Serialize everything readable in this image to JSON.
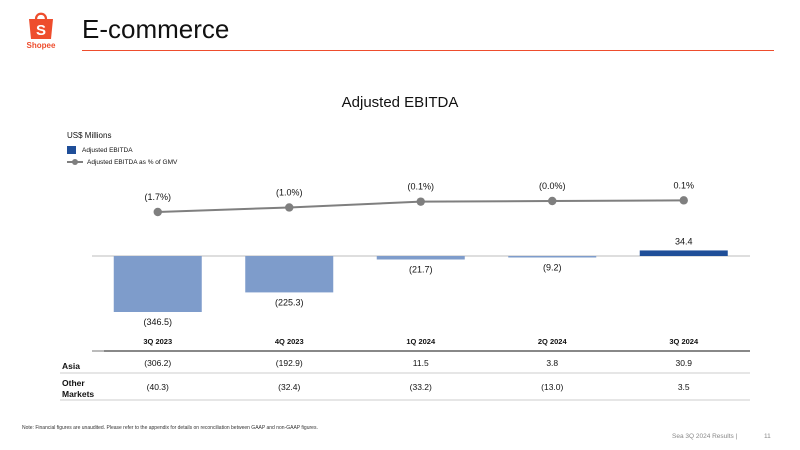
{
  "header": {
    "logo_text": "Shopee",
    "logo_icon": "shopping-bag-icon",
    "title": "E-commerce"
  },
  "chart_data": {
    "type": "bar",
    "title": "Adjusted EBITDA",
    "units": "US$ Millions",
    "categories": [
      "3Q 2023",
      "4Q 2023",
      "1Q 2024",
      "2Q 2024",
      "3Q 2024"
    ],
    "series": [
      {
        "name": "Adjusted EBITDA",
        "type": "bar",
        "values": [
          -346.5,
          -225.3,
          -21.7,
          -9.2,
          34.4
        ],
        "labels": [
          "(346.5)",
          "(225.3)",
          "(21.7)",
          "(9.2)",
          "34.4"
        ],
        "colors": [
          "#7e9ccb",
          "#7e9ccb",
          "#7e9ccb",
          "#7e9ccb",
          "#1f4e98"
        ]
      },
      {
        "name": "Adjusted EBITDA as % of GMV",
        "type": "line",
        "values": [
          -1.7,
          -1.0,
          -0.1,
          0.0,
          0.1
        ],
        "labels": [
          "(1.7%)",
          "(1.0%)",
          "(0.1%)",
          "(0.0%)",
          "0.1%"
        ],
        "color": "#7f7f7f"
      }
    ],
    "legend_position": "top-left",
    "grid": false
  },
  "table": {
    "rows": [
      {
        "label": "Asia",
        "values": [
          "(306.2)",
          "(192.9)",
          "11.5",
          "3.8",
          "30.9"
        ]
      },
      {
        "label": "Other Markets",
        "values": [
          "(40.3)",
          "(32.4)",
          "(33.2)",
          "(13.0)",
          "3.5"
        ]
      }
    ]
  },
  "footnote": "Note: Financial figures are unaudited. Please refer to the appendix for details on reconciliation between GAAP and non-GAAP figures.",
  "footer": {
    "text": "Sea 3Q 2024 Results |",
    "page": "11"
  },
  "colors": {
    "accent": "#ee4d2d",
    "bar_highlight": "#1f4e98",
    "bar_light": "#7e9ccb",
    "line": "#7f7f7f"
  }
}
